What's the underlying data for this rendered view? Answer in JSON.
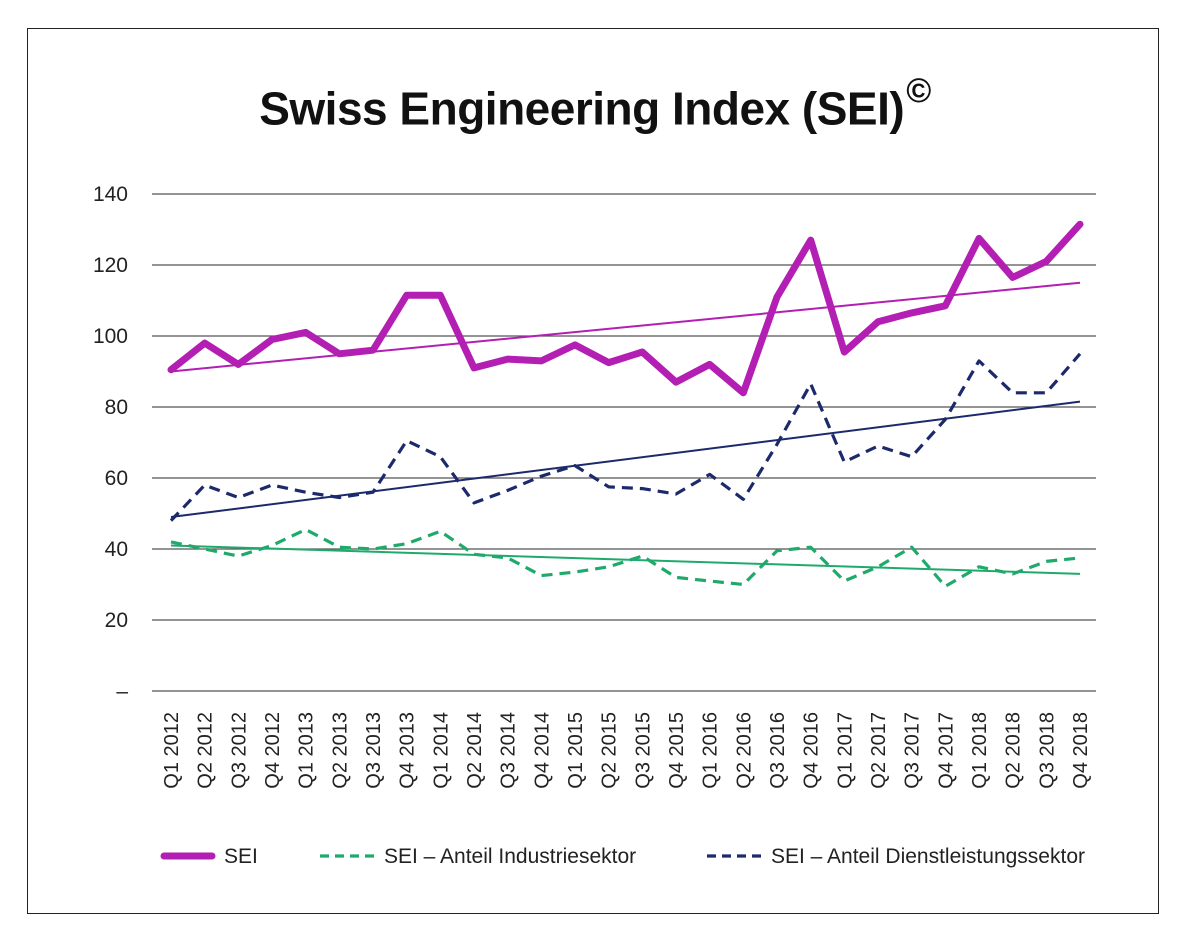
{
  "chart_data": {
    "type": "line",
    "title": "Swiss Engineering Index (SEI)",
    "title_mark": "©",
    "xlabel": "",
    "ylabel": "",
    "ylim": [
      0,
      140
    ],
    "yticks": [
      {
        "value": 0,
        "label": "–"
      },
      {
        "value": 20,
        "label": "20"
      },
      {
        "value": 40,
        "label": "40"
      },
      {
        "value": 60,
        "label": "60"
      },
      {
        "value": 80,
        "label": "80"
      },
      {
        "value": 100,
        "label": "100"
      },
      {
        "value": 120,
        "label": "120"
      },
      {
        "value": 140,
        "label": "140"
      }
    ],
    "grid": true,
    "legend_position": "bottom",
    "categories": [
      "Q1 2012",
      "Q2 2012",
      "Q3 2012",
      "Q4 2012",
      "Q1 2013",
      "Q2 2013",
      "Q3 2013",
      "Q4 2013",
      "Q1 2014",
      "Q2 2014",
      "Q3 2014",
      "Q4 2014",
      "Q1 2015",
      "Q2 2015",
      "Q3 2015",
      "Q4 2015",
      "Q1 2016",
      "Q2 2016",
      "Q3 2016",
      "Q4 2016",
      "Q1 2017",
      "Q2 2017",
      "Q3 2017",
      "Q4 2017",
      "Q1 2018",
      "Q2 2018",
      "Q3 2018",
      "Q4 2018"
    ],
    "series": [
      {
        "name": "SEI",
        "color": "#b31eb3",
        "style": "solid-thick",
        "values": [
          90.5,
          98,
          92,
          99,
          101,
          95,
          96,
          111.5,
          111.5,
          91,
          93.5,
          93,
          97.5,
          92.5,
          95.5,
          87,
          92,
          84,
          111,
          127,
          95.5,
          104,
          106.5,
          108.5,
          127.5,
          116.5,
          121,
          131.5
        ],
        "trend": [
          90,
          115
        ]
      },
      {
        "name": "SEI – Anteil Industriesektor",
        "color": "#1faa6b",
        "style": "dashed",
        "values": [
          42,
          40,
          38,
          41,
          45.5,
          40.5,
          40,
          41.5,
          45,
          38.5,
          37.5,
          32.5,
          33.5,
          35,
          38,
          32,
          31,
          30,
          39.5,
          40.5,
          31,
          35,
          40.5,
          29.5,
          35,
          33,
          36.5,
          37.5
        ],
        "trend": [
          41,
          33
        ]
      },
      {
        "name": "SEI – Anteil Dienstleistungssektor",
        "color": "#1c2a6b",
        "style": "dashed",
        "values": [
          48,
          58,
          54.5,
          58,
          56,
          54.5,
          56,
          70.5,
          66,
          53,
          56.5,
          60.5,
          63.5,
          57.5,
          57,
          55.5,
          61,
          54,
          69.5,
          86.5,
          64.5,
          69,
          66,
          76.5,
          93,
          84,
          84,
          95
        ],
        "trend": [
          49,
          81.5
        ]
      }
    ]
  }
}
